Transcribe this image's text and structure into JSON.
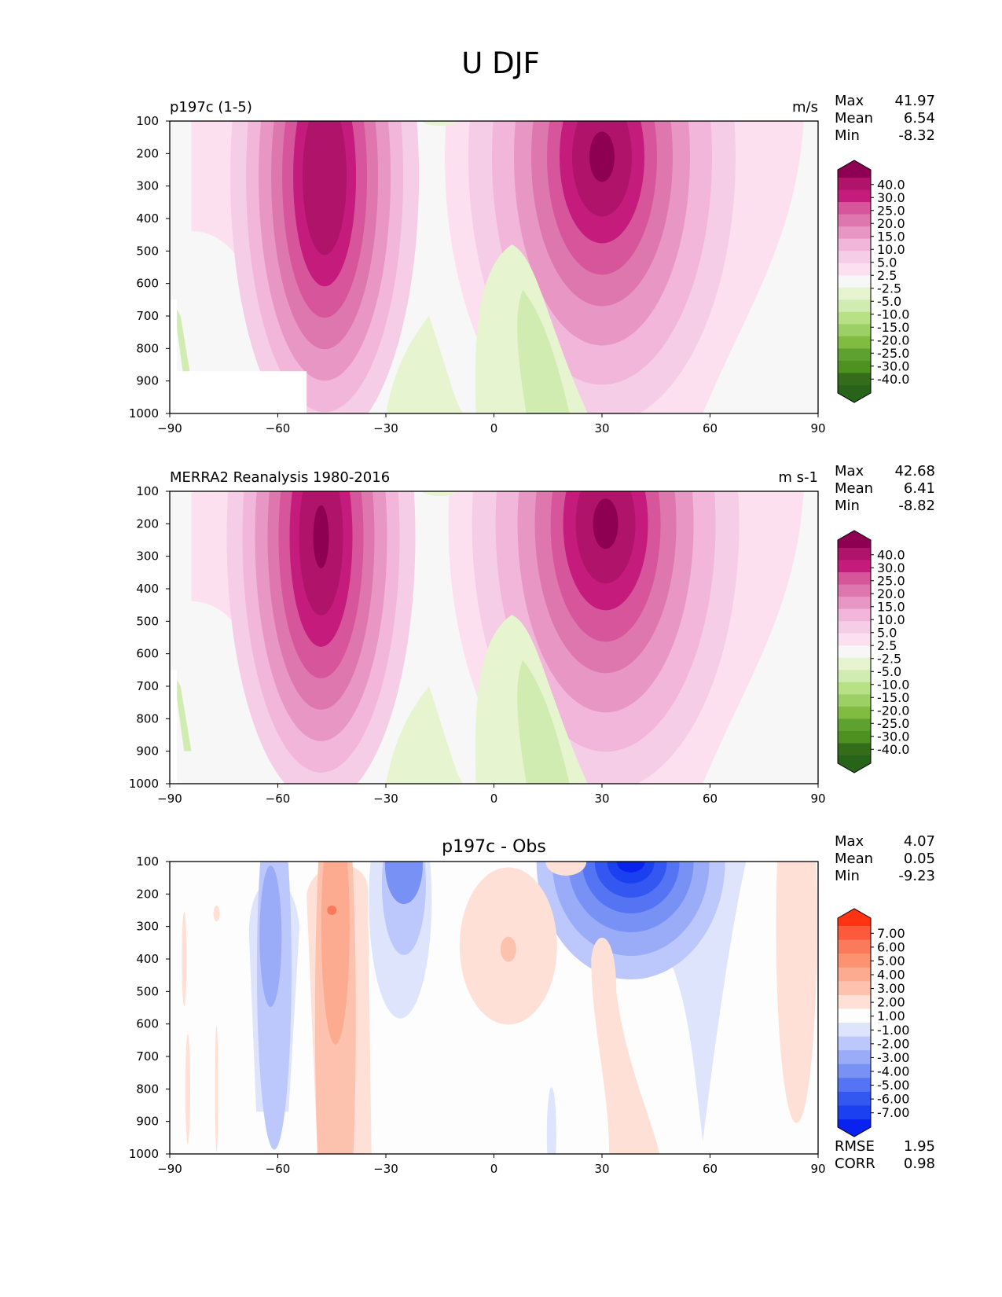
{
  "figure_title": "U DJF",
  "chart_data": [
    {
      "type": "heatmap",
      "title_left": "p197c (1-5)",
      "title_right": "m/s",
      "x_ticks": [
        "−90",
        "−60",
        "−30",
        "0",
        "30",
        "60",
        "90"
      ],
      "y_ticks": [
        "100",
        "200",
        "300",
        "400",
        "500",
        "600",
        "700",
        "800",
        "900",
        "1000"
      ],
      "xlim": [
        -90,
        90
      ],
      "ylim": [
        1000,
        100
      ],
      "stats": [
        {
          "label": "Max",
          "value": "41.97"
        },
        {
          "label": "Mean",
          "value": "6.54"
        },
        {
          "label": "Min",
          "value": "-8.32"
        }
      ],
      "colorbar": {
        "labels": [
          "40.0",
          "30.0",
          "25.0",
          "20.0",
          "15.0",
          "10.0",
          "5.0",
          "2.5",
          "-2.5",
          "-5.0",
          "-10.0",
          "-15.0",
          "-20.0",
          "-25.0",
          "-30.0",
          "-40.0"
        ],
        "colors": [
          "#8e0152",
          "#b0136a",
          "#c51b7d",
          "#d7559b",
          "#de77ae",
          "#e897c4",
          "#f1b6da",
          "#f6cde7",
          "#fde0ef",
          "#f7f7f7",
          "#e6f5d0",
          "#d0ecb0",
          "#b8e186",
          "#9ccf65",
          "#7fbc41",
          "#5fa131",
          "#4d9221",
          "#356c1a",
          "#276419"
        ]
      },
      "features": [
        {
          "lat": -47,
          "p": 270,
          "value": 35
        },
        {
          "lat": 30,
          "p": 210,
          "value": 41.97
        },
        {
          "lat": 8,
          "p": 800,
          "value": -8.32
        }
      ]
    },
    {
      "type": "heatmap",
      "title_left": "MERRA2 Reanalysis 1980-2016",
      "title_right": "m s-1",
      "x_ticks": [
        "−90",
        "−60",
        "−30",
        "0",
        "30",
        "60",
        "90"
      ],
      "y_ticks": [
        "100",
        "200",
        "300",
        "400",
        "500",
        "600",
        "700",
        "800",
        "900",
        "1000"
      ],
      "xlim": [
        -90,
        90
      ],
      "ylim": [
        1000,
        100
      ],
      "stats": [
        {
          "label": "Max",
          "value": "42.68"
        },
        {
          "label": "Mean",
          "value": "6.41"
        },
        {
          "label": "Min",
          "value": "-8.82"
        }
      ],
      "colorbar": {
        "labels": [
          "40.0",
          "30.0",
          "25.0",
          "20.0",
          "15.0",
          "10.0",
          "5.0",
          "2.5",
          "-2.5",
          "-5.0",
          "-10.0",
          "-15.0",
          "-20.0",
          "-25.0",
          "-30.0",
          "-40.0"
        ],
        "colors": [
          "#8e0152",
          "#b0136a",
          "#c51b7d",
          "#d7559b",
          "#de77ae",
          "#e897c4",
          "#f1b6da",
          "#f6cde7",
          "#fde0ef",
          "#f7f7f7",
          "#e6f5d0",
          "#d0ecb0",
          "#b8e186",
          "#9ccf65",
          "#7fbc41",
          "#5fa131",
          "#4d9221",
          "#356c1a",
          "#276419"
        ]
      },
      "features": [
        {
          "lat": -48,
          "p": 240,
          "value": 33
        },
        {
          "lat": 31,
          "p": 200,
          "value": 42.68
        },
        {
          "lat": 8,
          "p": 800,
          "value": -8.82
        }
      ]
    },
    {
      "type": "heatmap",
      "title_center": "p197c - Obs",
      "x_ticks": [
        "−90",
        "−60",
        "−30",
        "0",
        "30",
        "60",
        "90"
      ],
      "y_ticks": [
        "100",
        "200",
        "300",
        "400",
        "500",
        "600",
        "700",
        "800",
        "900",
        "1000"
      ],
      "xlim": [
        -90,
        90
      ],
      "ylim": [
        1000,
        100
      ],
      "stats": [
        {
          "label": "Max",
          "value": "4.07"
        },
        {
          "label": "Mean",
          "value": "0.05"
        },
        {
          "label": "Min",
          "value": "-9.23"
        }
      ],
      "extra_stats": [
        {
          "label": "RMSE",
          "value": "1.95"
        },
        {
          "label": "CORR",
          "value": "0.98"
        }
      ],
      "colorbar": {
        "labels": [
          "7.00",
          "6.00",
          "5.00",
          "4.00",
          "3.00",
          "2.00",
          "1.00",
          "-1.00",
          "-2.00",
          "-3.00",
          "-4.00",
          "-5.00",
          "-6.00",
          "-7.00"
        ],
        "colors": [
          "#ff3311",
          "#fb5a3b",
          "#fc7a5c",
          "#fc9272",
          "#fcaa90",
          "#fdc2ad",
          "#fee0d6",
          "#fdfdfd",
          "#dde4fc",
          "#bcc8fb",
          "#9aacf8",
          "#7891f5",
          "#5574f3",
          "#3357f0",
          "#1a40f0",
          "#0a22f0"
        ]
      },
      "features": [
        {
          "lat": 38,
          "p": 120,
          "value": -9.23
        },
        {
          "lat": -44,
          "p": 260,
          "value": 4.07
        }
      ]
    }
  ]
}
